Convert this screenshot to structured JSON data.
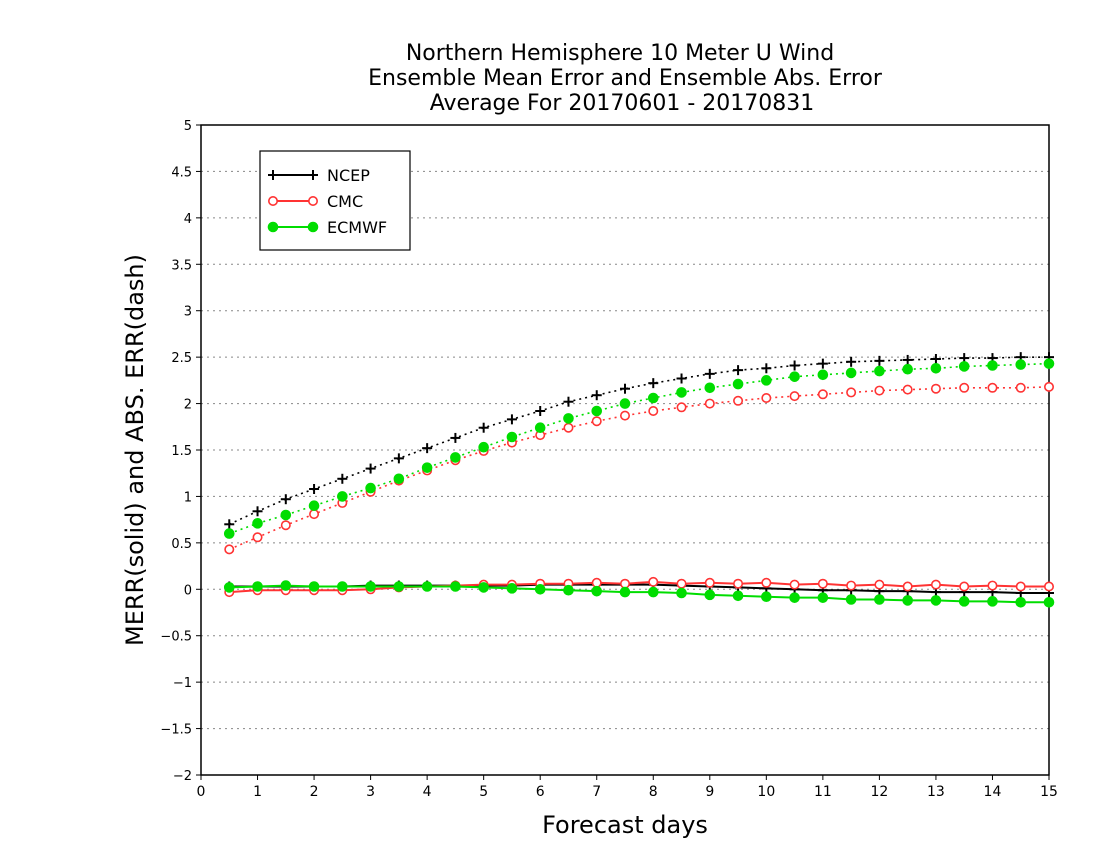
{
  "chart_data": {
    "type": "line",
    "title": [
      "Northern Hemisphere 10 Meter U Wind",
      "Ensemble Mean Error and Ensemble Abs. Error",
      "Average For 20170601 - 20170831"
    ],
    "xlabel": "Forecast days",
    "ylabel": "MERR(solid) and ABS. ERR(dash)",
    "xlim": [
      0,
      15
    ],
    "ylim": [
      -2,
      5
    ],
    "xticks": [
      "0",
      "1",
      "2",
      "3",
      "4",
      "5",
      "6",
      "7",
      "8",
      "9",
      "10",
      "11",
      "12",
      "13",
      "14",
      "15"
    ],
    "yticks": [
      "−2",
      "−1.5",
      "−1",
      "−0.5",
      "0",
      "0.5",
      "1",
      "1.5",
      "2",
      "2.5",
      "3",
      "3.5",
      "4",
      "4.5",
      "5"
    ],
    "grid": "horizontal dotted",
    "legend_position": "top-left",
    "x": [
      0.5,
      1,
      1.5,
      2,
      2.5,
      3,
      3.5,
      4,
      4.5,
      5,
      5.5,
      6,
      6.5,
      7,
      7.5,
      8,
      8.5,
      9,
      9.5,
      10,
      10.5,
      11,
      11.5,
      12,
      12.5,
      13,
      13.5,
      14,
      14.5,
      15
    ],
    "series": [
      {
        "name": "NCEP",
        "color": "#000000",
        "marker": "plus",
        "abs_err": [
          0.7,
          0.84,
          0.97,
          1.08,
          1.19,
          1.3,
          1.41,
          1.52,
          1.63,
          1.74,
          1.83,
          1.92,
          2.02,
          2.09,
          2.16,
          2.22,
          2.27,
          2.32,
          2.36,
          2.38,
          2.41,
          2.43,
          2.45,
          2.46,
          2.47,
          2.48,
          2.49,
          2.49,
          2.5,
          2.5
        ],
        "mean_err": [
          0.03,
          0.03,
          0.03,
          0.03,
          0.03,
          0.04,
          0.04,
          0.04,
          0.04,
          0.04,
          0.04,
          0.05,
          0.05,
          0.05,
          0.05,
          0.05,
          0.04,
          0.03,
          0.02,
          0.01,
          0.0,
          -0.01,
          -0.01,
          -0.02,
          -0.02,
          -0.03,
          -0.03,
          -0.03,
          -0.04,
          -0.04
        ]
      },
      {
        "name": "CMC",
        "color": "#ff3333",
        "marker": "open-circle",
        "abs_err": [
          0.43,
          0.56,
          0.69,
          0.81,
          0.93,
          1.05,
          1.17,
          1.28,
          1.39,
          1.49,
          1.58,
          1.66,
          1.74,
          1.81,
          1.87,
          1.92,
          1.96,
          2.0,
          2.03,
          2.06,
          2.08,
          2.1,
          2.12,
          2.14,
          2.15,
          2.16,
          2.17,
          2.17,
          2.17,
          2.18
        ],
        "mean_err": [
          -0.03,
          -0.01,
          -0.01,
          -0.01,
          -0.01,
          0.0,
          0.02,
          0.03,
          0.04,
          0.05,
          0.05,
          0.06,
          0.06,
          0.07,
          0.06,
          0.08,
          0.06,
          0.07,
          0.06,
          0.07,
          0.05,
          0.06,
          0.04,
          0.05,
          0.03,
          0.05,
          0.03,
          0.04,
          0.03,
          0.03
        ]
      },
      {
        "name": "ECMWF",
        "color": "#00dd00",
        "marker": "filled-circle",
        "abs_err": [
          0.6,
          0.71,
          0.8,
          0.9,
          1.0,
          1.09,
          1.19,
          1.31,
          1.42,
          1.53,
          1.64,
          1.74,
          1.84,
          1.92,
          2.0,
          2.06,
          2.12,
          2.17,
          2.21,
          2.25,
          2.29,
          2.31,
          2.33,
          2.35,
          2.37,
          2.38,
          2.4,
          2.41,
          2.42,
          2.43
        ],
        "mean_err": [
          0.02,
          0.03,
          0.04,
          0.03,
          0.03,
          0.03,
          0.03,
          0.03,
          0.03,
          0.02,
          0.01,
          0.0,
          -0.01,
          -0.02,
          -0.03,
          -0.03,
          -0.04,
          -0.06,
          -0.07,
          -0.08,
          -0.09,
          -0.09,
          -0.11,
          -0.11,
          -0.12,
          -0.12,
          -0.13,
          -0.13,
          -0.14,
          -0.14
        ]
      }
    ]
  }
}
